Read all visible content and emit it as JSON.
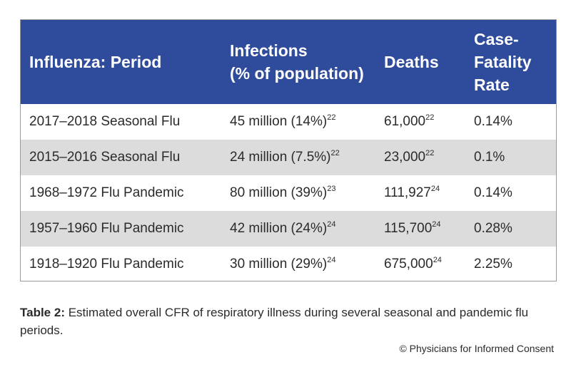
{
  "table": {
    "headers": [
      {
        "lines": [
          "Influenza: Period"
        ]
      },
      {
        "lines": [
          "Infections",
          "(% of population)"
        ]
      },
      {
        "lines": [
          "Deaths"
        ]
      },
      {
        "lines": [
          "Case-",
          "Fatality",
          "Rate"
        ]
      }
    ],
    "rows": [
      {
        "period": "2017–2018 Seasonal Flu",
        "infections": "45 million (14%)",
        "infections_ref": "22",
        "deaths": "61,000",
        "deaths_ref": "22",
        "cfr": "0.14%"
      },
      {
        "period": "2015–2016 Seasonal Flu",
        "infections": "24 million (7.5%)",
        "infections_ref": "22",
        "deaths": "23,000",
        "deaths_ref": "22",
        "cfr": "0.1%"
      },
      {
        "period": "1968–1972 Flu Pandemic",
        "infections": "80 million (39%)",
        "infections_ref": "23",
        "deaths": "111,927",
        "deaths_ref": "24",
        "cfr": "0.14%"
      },
      {
        "period": "1957–1960 Flu Pandemic",
        "infections": "42 million (24%)",
        "infections_ref": "24",
        "deaths": "115,700",
        "deaths_ref": "24",
        "cfr": "0.28%"
      },
      {
        "period": "1918–1920 Flu Pandemic",
        "infections": "30 million (29%)",
        "infections_ref": "24",
        "deaths": "675,000",
        "deaths_ref": "24",
        "cfr": "2.25%"
      }
    ]
  },
  "caption": {
    "label": "Table 2:",
    "text": " Estimated overall CFR of respiratory illness during several seasonal and pandemic flu periods."
  },
  "credit": "© Physicians for Informed Consent",
  "colors": {
    "header_bg": "#2f4b9b",
    "shaded_row": "#dcdcdc"
  }
}
